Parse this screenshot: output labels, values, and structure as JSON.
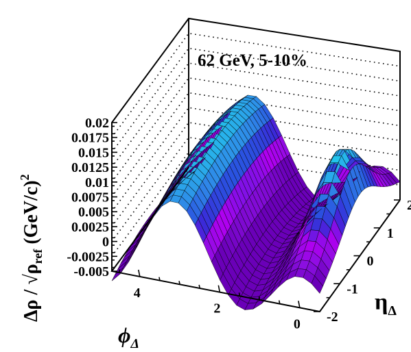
{
  "chart_data": {
    "type": "surface",
    "annotation": "62 GeV, 5-10%",
    "xaxis": {
      "label": "ϕ",
      "label_sub": "Δ",
      "range": [
        -0.5,
        4.7
      ],
      "ticks": [
        4,
        2,
        0
      ],
      "tick_labels": [
        "4",
        "2",
        "0"
      ]
    },
    "yaxis": {
      "label": "η",
      "label_sub": "Δ",
      "range": [
        -2,
        2
      ],
      "ticks": [
        -2,
        -1,
        0,
        1,
        2
      ],
      "tick_labels": [
        "-2",
        "-1",
        "0",
        "1",
        "2"
      ]
    },
    "zaxis": {
      "label_parts": [
        "Δρ / √",
        "ρ",
        "ref",
        " (GeV/c)",
        "2"
      ],
      "range": [
        -0.005,
        0.02
      ],
      "ticks": [
        -0.005,
        -0.0025,
        0,
        0.0025,
        0.005,
        0.0075,
        0.01,
        0.0125,
        0.015,
        0.0175,
        0.02
      ],
      "tick_labels": [
        "-0.005",
        "-0.0025",
        "0",
        "0.0025",
        "0.005",
        "0.0075",
        "0.01",
        "0.0125",
        "0.015",
        "0.0175",
        "0.02"
      ]
    },
    "grid": {
      "nx": 25,
      "ny": 25
    },
    "surface_model": {
      "offset": 0.001,
      "cos1": -0.0045,
      "cos2": 0.0055,
      "nearside_peak": {
        "amplitude": 0.01,
        "sigma_phi": 0.45,
        "sigma_eta": 0.8
      },
      "eta_falloff": 0.00055,
      "value_range": [
        -0.0007,
        0.0167
      ]
    },
    "colormap": [
      "#6a00b8",
      "#8a0fe0",
      "#b000f0",
      "#3c28d8",
      "#2a52e0",
      "#2f86e8",
      "#2aa9ea",
      "#20c6ec",
      "#1de6c8",
      "#27f08a",
      "#35f23a"
    ]
  }
}
